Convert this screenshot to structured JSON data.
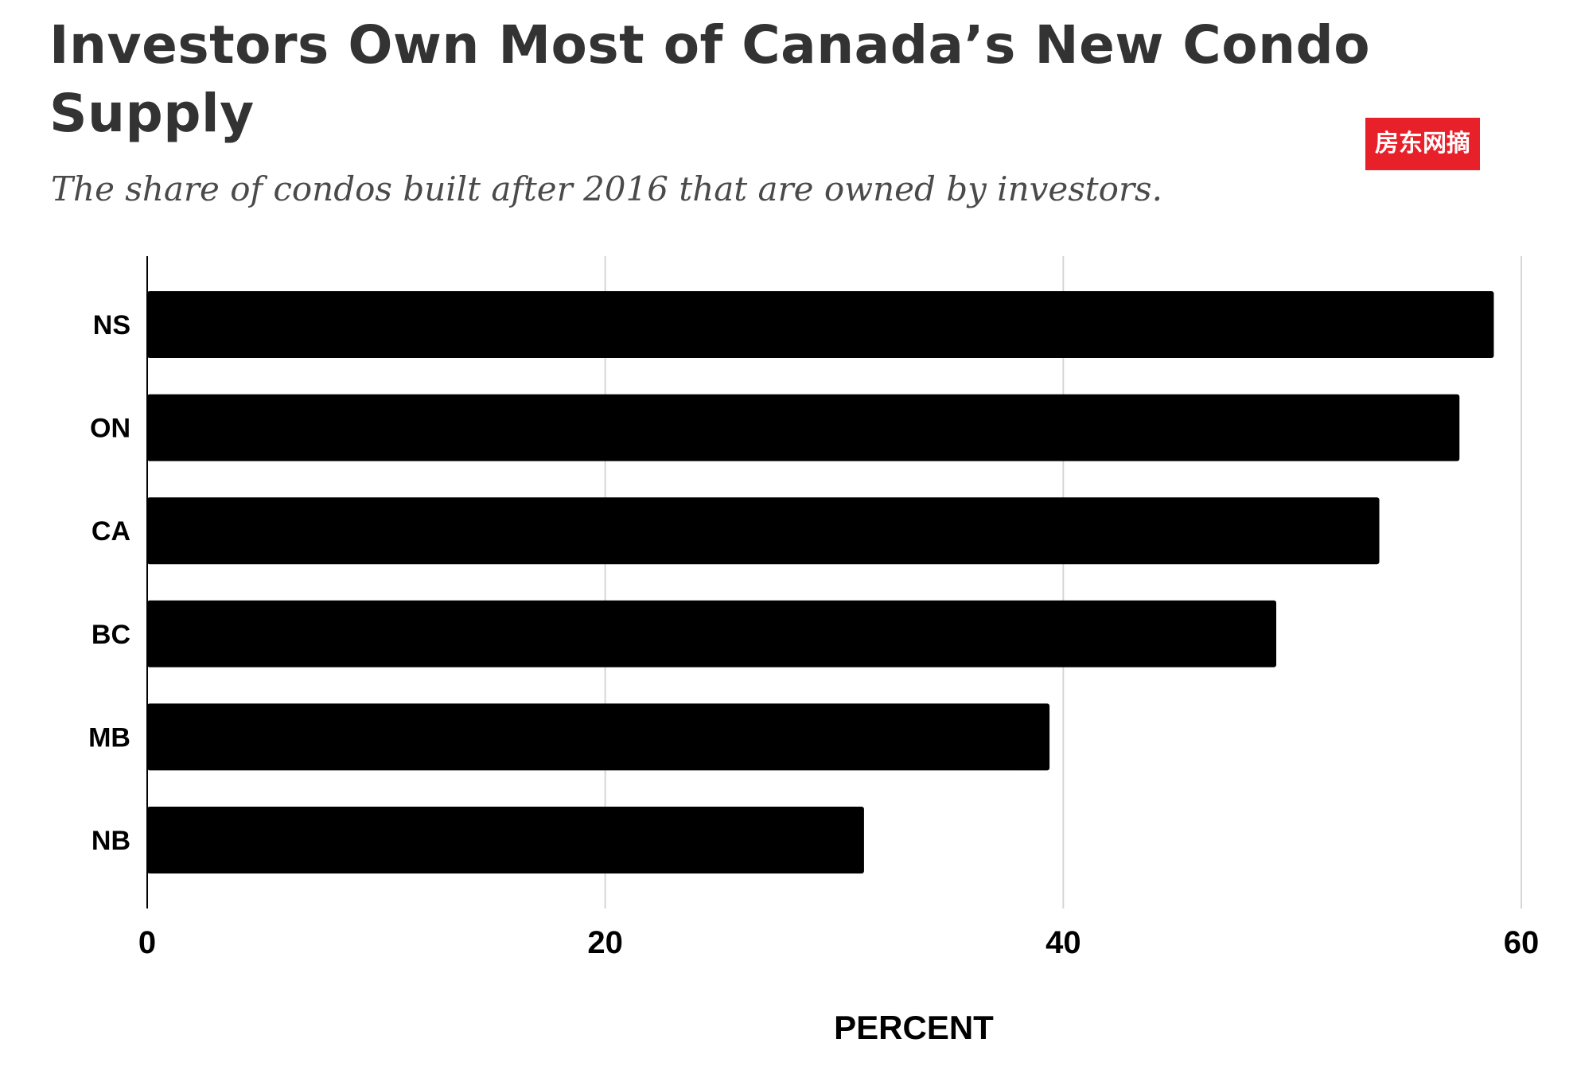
{
  "title": "Investors Own Most of Canada’s New Condo Supply",
  "subtitle": "The share of condos built after 2016 that are owned by investors.",
  "watermark": "房东网摘",
  "colors": {
    "bar": "#000000",
    "grid": "#d6d6d6",
    "title": "#333333",
    "watermark_bg": "#e8202a"
  },
  "chart_data": {
    "type": "bar",
    "orientation": "horizontal",
    "categories": [
      "NS",
      "ON",
      "CA",
      "BC",
      "MB",
      "NB"
    ],
    "values": [
      58.8,
      57.3,
      53.8,
      49.3,
      39.4,
      31.3
    ],
    "xlabel": "PERCENT",
    "ylabel": "",
    "xlim": [
      0,
      60
    ],
    "xticks": [
      "0",
      "20",
      "40",
      "60"
    ],
    "grid": true,
    "legend": "none"
  }
}
